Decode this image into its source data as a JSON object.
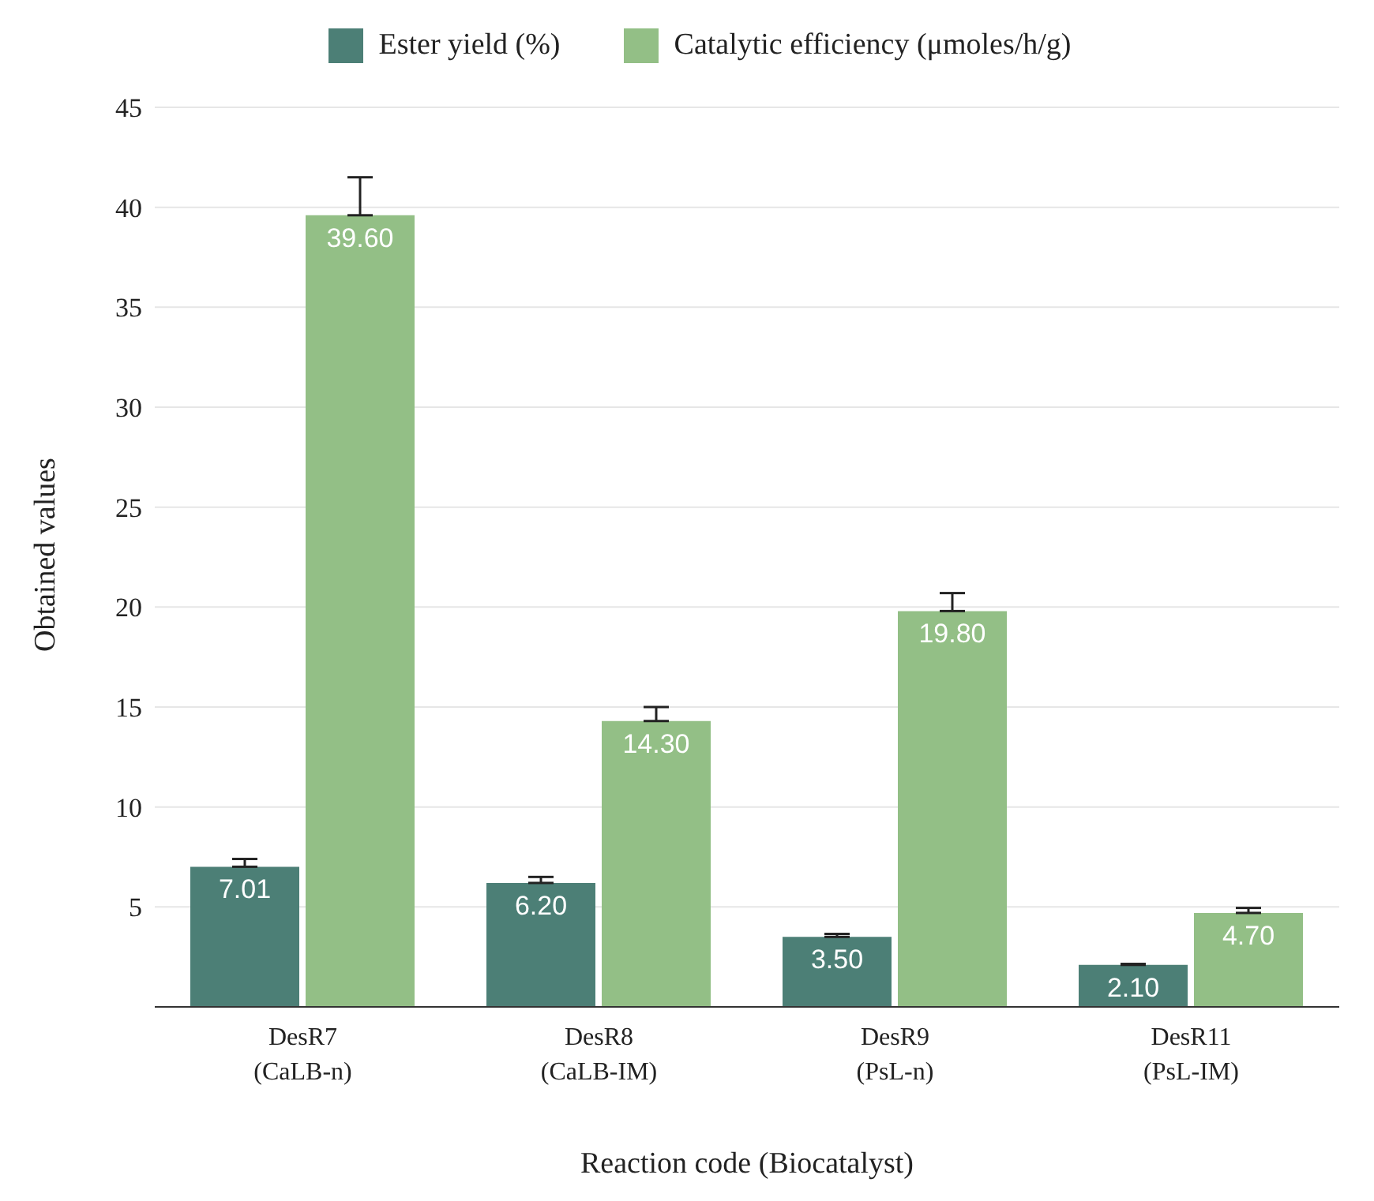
{
  "chart_data": {
    "type": "bar",
    "xlabel": "Reaction code (Biocatalyst)",
    "ylabel": "Obtained values",
    "categories": [
      "DesR7\n(CaLB-n)",
      "DesR8\n(CaLB-IM)",
      "DesR9\n(PsL-n)",
      "DesR11\n(PsL-IM)"
    ],
    "series": [
      {
        "name": "Ester yield (%)",
        "color": "#4c7f76",
        "values": [
          7.01,
          6.2,
          3.5,
          2.1
        ],
        "value_labels": [
          "7.01",
          "6.20",
          "3.50",
          "2.10"
        ],
        "errors": [
          [
            7.01,
            7.4
          ],
          [
            6.2,
            6.5
          ],
          [
            3.5,
            3.65
          ],
          [
            2.1,
            2.15
          ]
        ]
      },
      {
        "name": "Catalytic efficiency (μmoles/h/g)",
        "color": "#93bf86",
        "values": [
          39.6,
          14.3,
          19.8,
          4.7
        ],
        "value_labels": [
          "39.60",
          "14.30",
          "19.80",
          "4.70"
        ],
        "errors": [
          [
            39.6,
            41.5
          ],
          [
            14.3,
            15
          ],
          [
            19.8,
            20.7
          ],
          [
            4.7,
            4.95
          ]
        ]
      }
    ],
    "ylim": [
      0,
      45
    ],
    "yticks": [
      5,
      10,
      15,
      20,
      25,
      30,
      35,
      40,
      45
    ],
    "grid": "y",
    "legend": "top"
  }
}
